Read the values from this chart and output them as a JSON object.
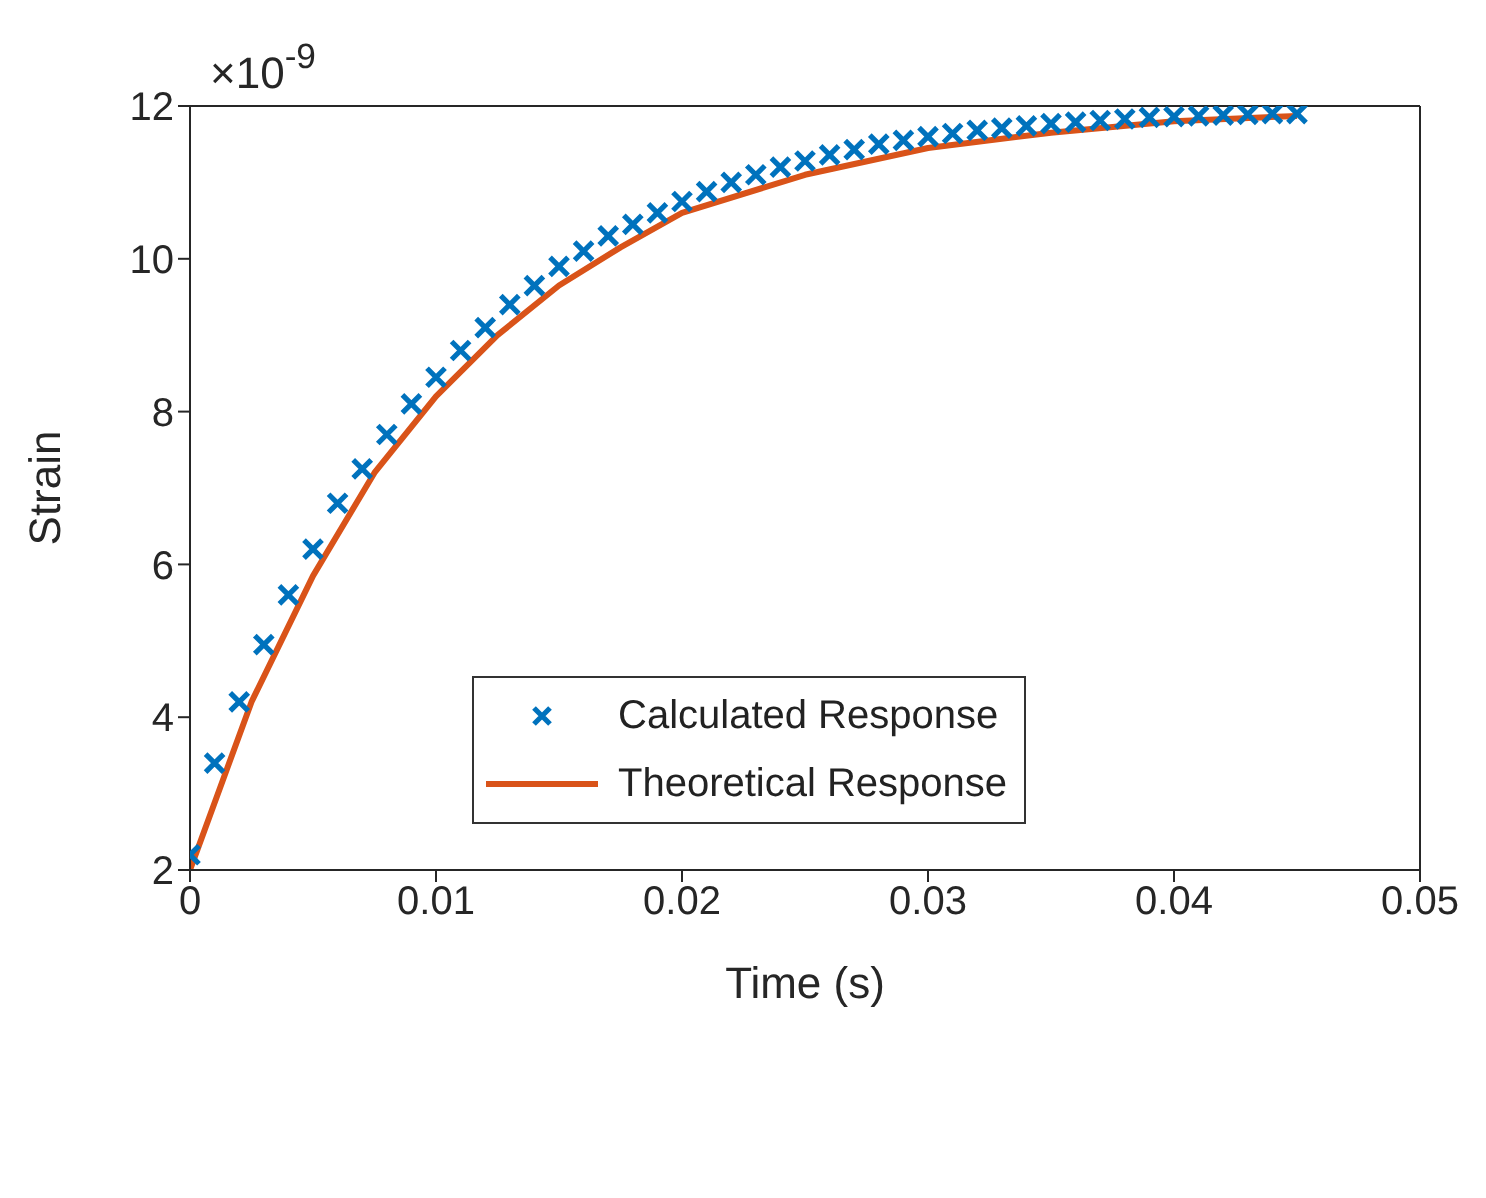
{
  "chart_data": {
    "type": "scatter",
    "xlabel": "Time (s)",
    "ylabel": "Strain",
    "annotations": [
      "×10$^{-9}$"
    ],
    "xlim": [
      0,
      0.05
    ],
    "xticks": [
      0,
      0.01,
      0.02,
      0.03,
      0.04,
      0.05
    ],
    "ylim": [
      2,
      12
    ],
    "yticks": [
      2,
      4,
      6,
      8,
      10,
      12
    ],
    "legend": "center",
    "series": [
      {
        "name": "Calculated Response",
        "marker": "cross",
        "color": "#0072bd",
        "x": [
          0,
          0.001,
          0.002,
          0.003,
          0.004,
          0.005,
          0.006,
          0.007,
          0.008,
          0.009,
          0.01,
          0.011,
          0.012,
          0.013,
          0.014,
          0.015,
          0.016,
          0.017,
          0.018,
          0.019,
          0.02,
          0.021,
          0.022,
          0.023,
          0.024,
          0.025,
          0.026,
          0.027,
          0.028,
          0.029,
          0.03,
          0.031,
          0.032,
          0.033,
          0.034,
          0.035,
          0.036,
          0.037,
          0.038,
          0.039,
          0.04,
          0.041,
          0.042,
          0.043,
          0.044,
          0.045
        ],
        "values": [
          2.2,
          3.4,
          4.2,
          4.95,
          5.6,
          6.2,
          6.8,
          7.25,
          7.7,
          8.1,
          8.45,
          8.8,
          9.1,
          9.4,
          9.65,
          9.9,
          10.1,
          10.3,
          10.45,
          10.6,
          10.75,
          10.88,
          11.0,
          11.1,
          11.2,
          11.28,
          11.36,
          11.43,
          11.5,
          11.55,
          11.6,
          11.64,
          11.68,
          11.71,
          11.74,
          11.77,
          11.79,
          11.81,
          11.83,
          11.85,
          11.86,
          11.87,
          11.88,
          11.89,
          11.9,
          11.9
        ]
      },
      {
        "name": "Theoretical Response",
        "type": "line",
        "marker": "none",
        "line_style": "solid",
        "color": "#d95319",
        "x": [
          0,
          0.0025,
          0.005,
          0.0075,
          0.01,
          0.0125,
          0.015,
          0.0175,
          0.02,
          0.025,
          0.03,
          0.035,
          0.04,
          0.045
        ],
        "values": [
          2,
          4.2,
          5.85,
          7.2,
          8.2,
          9.0,
          9.65,
          10.15,
          10.6,
          11.1,
          11.45,
          11.65,
          11.8,
          11.87
        ]
      }
    ]
  }
}
